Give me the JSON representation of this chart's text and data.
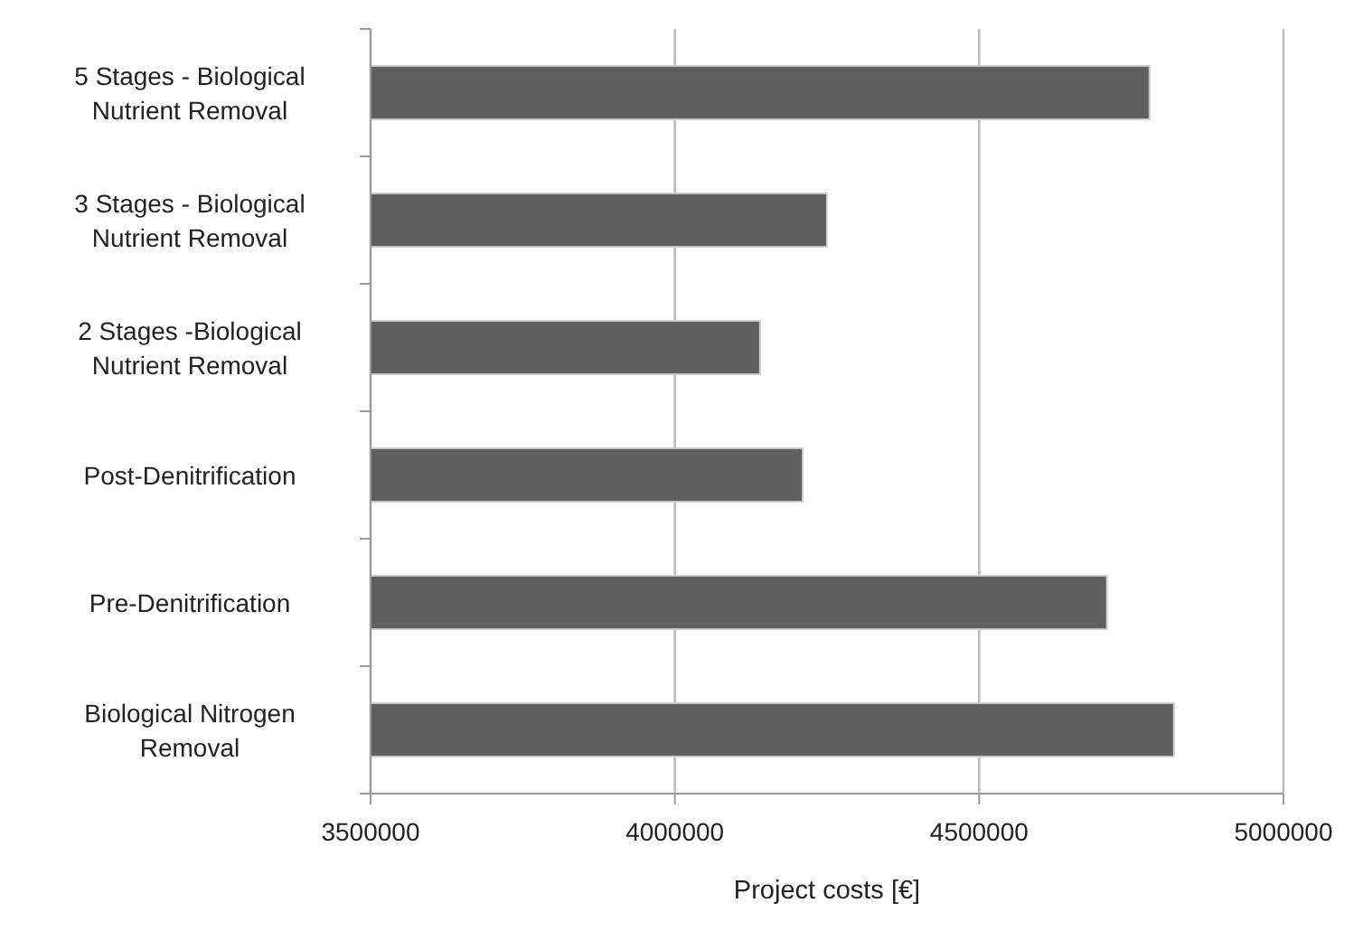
{
  "chart_data": {
    "type": "bar",
    "orientation": "horizontal",
    "xlabel": "Project costs [€]",
    "categories": [
      "5 Stages - Biological Nutrient Removal",
      "3 Stages - Biological Nutrient Removal",
      "2 Stages -Biological Nutrient Removal",
      "Post-Denitrification",
      "Pre-Denitrification",
      "Biological Nitrogen Removal"
    ],
    "values": [
      4780000,
      4250000,
      4140000,
      4210000,
      4710000,
      4820000
    ],
    "color": "#5f5f5f",
    "xlim": [
      3500000,
      5000000
    ],
    "xticks": [
      3500000,
      4000000,
      4500000,
      5000000
    ],
    "grid": "x"
  }
}
